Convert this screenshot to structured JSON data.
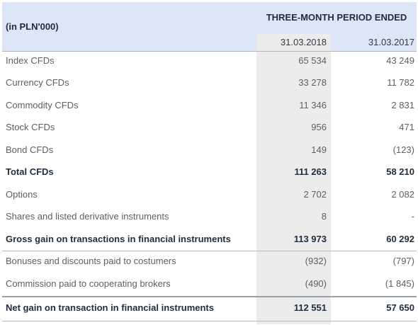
{
  "header": {
    "unit_label": "(in PLN'000)",
    "period_title": "THREE-MONTH PERIOD ENDED",
    "columns": [
      "31.03.2018",
      "31.03.2017"
    ]
  },
  "rows": [
    {
      "label": "Index CFDs",
      "v1": "65 534",
      "v2": "43 249",
      "bold": false
    },
    {
      "label": "Currency CFDs",
      "v1": "33 278",
      "v2": "11 782",
      "bold": false
    },
    {
      "label": "Commodity CFDs",
      "v1": "11 346",
      "v2": "2 831",
      "bold": false
    },
    {
      "label": "Stock CFDs",
      "v1": "956",
      "v2": "471",
      "bold": false
    },
    {
      "label": "Bond CFDs",
      "v1": "149",
      "v2": "(123)",
      "bold": false
    },
    {
      "label": "Total CFDs",
      "v1": "111 263",
      "v2": "58 210",
      "bold": true
    },
    {
      "label": "Options",
      "v1": "2 702",
      "v2": "2 082",
      "bold": false
    },
    {
      "label": "Shares and listed derivative instruments",
      "v1": "8",
      "v2": "-",
      "bold": false
    },
    {
      "label": "Gross gain on transactions in financial instruments",
      "v1": "113 973",
      "v2": "60 292",
      "bold": true
    },
    {
      "label": "Bonuses and discounts paid to costumers",
      "v1": "(932)",
      "v2": "(797)",
      "bold": false
    },
    {
      "label": "Commission paid to cooperating brokers",
      "v1": "(490)",
      "v2": "(1 845)",
      "bold": false
    },
    {
      "label": "Net gain on transaction in financial instruments",
      "v1": "112 551",
      "v2": "57 650",
      "bold": true
    }
  ],
  "colors": {
    "header_bg": "#dce6f7",
    "shaded_column": "#ececec",
    "bold_text": "#1f2d3d",
    "body_text": "#5b6066"
  }
}
